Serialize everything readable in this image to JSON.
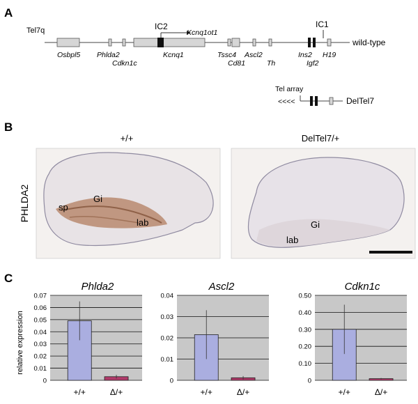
{
  "panel_a": {
    "letter": "A",
    "chromosome": "Tel7q",
    "allele_wt": "wild-type",
    "genes_below": [
      "Osbpl5",
      "Phlda2",
      "Cdkn1c",
      "Kcnq1",
      "Tssc4",
      "Cd81",
      "Ascl2",
      "Th",
      "Ins2",
      "Igf2",
      "H19"
    ],
    "ic2": "IC2",
    "kcnq1ot1": "Kcnq1ot1",
    "ic1": "IC1",
    "tel_array": "Tel array",
    "arrows": "<<<<",
    "allele_del": "DelTel7"
  },
  "panel_b": {
    "letter": "B",
    "stain": "PHLDA2",
    "left_genotype": "+/+",
    "right_genotype": "DelTel7/+",
    "left_labels": {
      "sp": "sp",
      "gi": "Gi",
      "lab": "lab"
    },
    "right_labels": {
      "gi": "Gi",
      "lab": "lab"
    }
  },
  "panel_c": {
    "letter": "C",
    "ylabel": "relative expression",
    "colors": {
      "wt": "#aaaee0",
      "del": "#b03a6a",
      "bg": "#c8c8c8"
    }
  },
  "chart_data": [
    {
      "type": "bar",
      "title": "Phlda2",
      "categories": [
        "+/+",
        "Δ/+"
      ],
      "values": [
        0.049,
        0.003
      ],
      "errors": [
        0.016,
        0.0015
      ],
      "ylim": [
        0,
        0.07
      ],
      "ticks": [
        "0.07",
        "0.06",
        "0.05",
        "0.04",
        "0.03",
        "0.02",
        "0.01",
        "0"
      ],
      "ylabel": "relative expression"
    },
    {
      "type": "bar",
      "title": "Ascl2",
      "categories": [
        "+/+",
        "Δ/+"
      ],
      "values": [
        0.0215,
        0.0012
      ],
      "errors": [
        0.0115,
        0.0008
      ],
      "ylim": [
        0,
        0.04
      ],
      "ticks": [
        "0.04",
        "0.03",
        "0.02",
        "0.01",
        "0"
      ]
    },
    {
      "type": "bar",
      "title": "Cdkn1c",
      "categories": [
        "+/+",
        "Δ/+"
      ],
      "values": [
        0.3,
        0.01
      ],
      "errors": [
        0.145,
        0.004
      ],
      "ylim": [
        0,
        0.5
      ],
      "ticks": [
        "0.50",
        "0.40",
        "0.30",
        "0.20",
        "0.10",
        "0"
      ]
    }
  ]
}
